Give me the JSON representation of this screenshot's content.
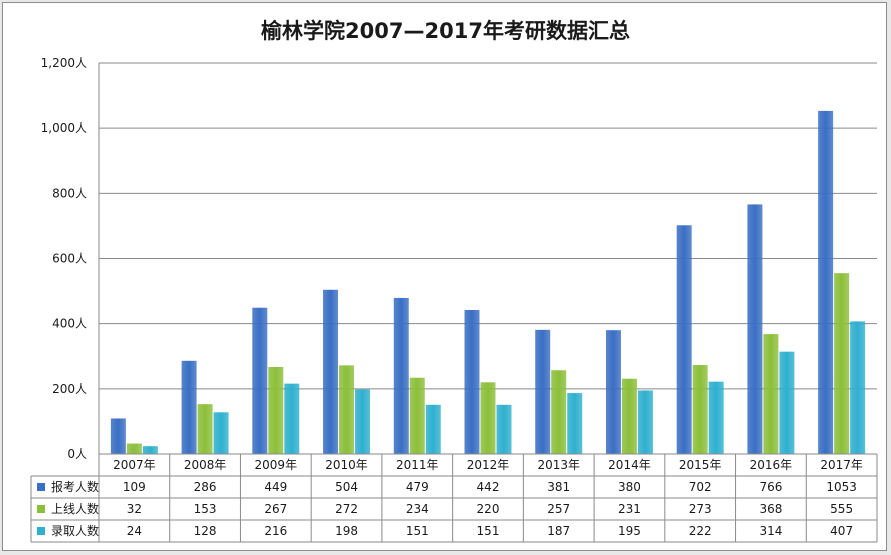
{
  "chart_data": {
    "type": "bar",
    "title": "榆林学院2007—2017年考研数据汇总",
    "categories": [
      "2007年",
      "2008年",
      "2009年",
      "2010年",
      "2011年",
      "2012年",
      "2013年",
      "2014年",
      "2015年",
      "2016年",
      "2017年"
    ],
    "series": [
      {
        "name": "报考人数",
        "color": "#3a6fc4",
        "values": [
          109,
          286,
          449,
          504,
          479,
          442,
          381,
          380,
          702,
          766,
          1053
        ]
      },
      {
        "name": "上线人数",
        "color": "#8cbf3a",
        "values": [
          32,
          153,
          267,
          272,
          234,
          220,
          257,
          231,
          273,
          368,
          555
        ]
      },
      {
        "name": "录取人数",
        "color": "#2fb0cf",
        "values": [
          24,
          128,
          216,
          198,
          151,
          151,
          187,
          195,
          222,
          314,
          407
        ]
      }
    ],
    "ylim": [
      0,
      1200
    ],
    "yticks": [
      0,
      200,
      400,
      600,
      800,
      1000,
      1200
    ],
    "ytick_labels": [
      "0人",
      "200人",
      "400人",
      "600人",
      "800人",
      "1,000人",
      "1,200人"
    ],
    "grid": true,
    "legend": "data-table",
    "xlabel": "",
    "ylabel": ""
  }
}
